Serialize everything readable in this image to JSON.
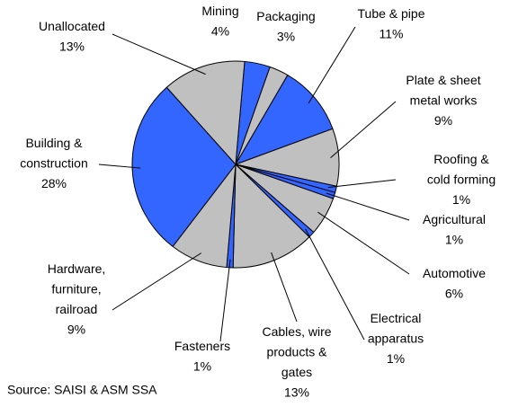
{
  "chart_data": {
    "type": "pie",
    "categories": [
      "Mining",
      "Packaging",
      "Tube & pipe",
      "Plate & sheet metal works",
      "Roofing & cold forming",
      "Agricultural",
      "Automotive",
      "Electrical apparatus",
      "Cables, wire products & gates",
      "Fasteners",
      "Hardware, furniture, railroad",
      "Building & construction",
      "Unallocated"
    ],
    "values": [
      4,
      3,
      11,
      9,
      1,
      1,
      6,
      1,
      13,
      1,
      9,
      28,
      13
    ],
    "value_labels": [
      "4%",
      "3%",
      "11%",
      "9%",
      "1%",
      "1%",
      "6%",
      "1%",
      "13%",
      "1%",
      "9%",
      "28%",
      "13%"
    ],
    "colors": [
      "#3366ff",
      "#c0c0c0",
      "#3366ff",
      "#c0c0c0",
      "#3366ff",
      "#3366ff",
      "#c0c0c0",
      "#3366ff",
      "#c0c0c0",
      "#3366ff",
      "#c0c0c0",
      "#3366ff",
      "#c0c0c0"
    ],
    "note": "Source: SAISI & ASM SSA"
  }
}
